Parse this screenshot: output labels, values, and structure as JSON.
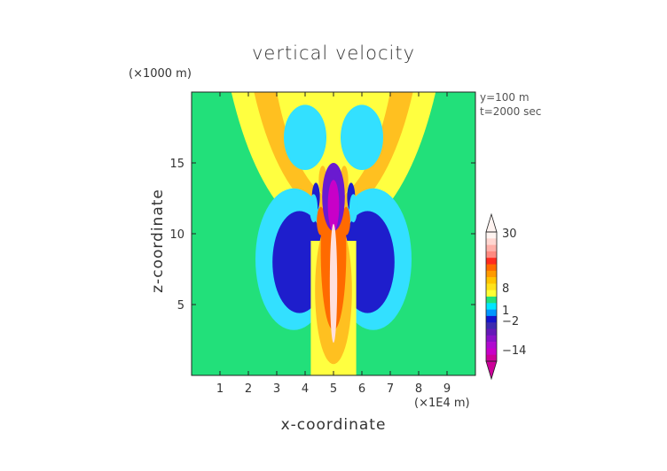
{
  "chart_data": {
    "type": "heatmap",
    "title": "vertical velocity",
    "xlabel": "x-coordinate",
    "ylabel": "z-coordinate",
    "x_scale_note": "(×1E4 m)",
    "z_scale_note": "(×1000 m)",
    "annotations": [
      "y=100 m",
      "t=2000 sec"
    ],
    "xlim": [
      0,
      10
    ],
    "ylim": [
      0,
      20
    ],
    "x_ticks": [
      "1",
      "2",
      "3",
      "4",
      "5",
      "6",
      "7",
      "8",
      "9"
    ],
    "y_ticks": [
      "5",
      "10",
      "15"
    ],
    "colorbar": {
      "labels": [
        "30",
        "8",
        "1",
        "−2",
        "−14"
      ],
      "colors": [
        "#fff3f0",
        "#ffd6d0",
        "#ffb0a8",
        "#ff8a80",
        "#ff2b1f",
        "#ff6a00",
        "#ff9a00",
        "#ffc400",
        "#ffe21a",
        "#ffff33",
        "#22e07a",
        "#00e6ff",
        "#0096ff",
        "#1414cc",
        "#3c2ab0",
        "#6418b8",
        "#8a10c8",
        "#b00ad0",
        "#c800c8",
        "#cc0099"
      ]
    },
    "colors": {
      "background_field": "#22e07a",
      "strong_down": "#1e1ecc",
      "weak_down": "#33e0ff",
      "weak_up": "#ffff40",
      "moderate_up": "#ffc020",
      "strong_up": "#ff6a00",
      "core": "#ffe0dc"
    }
  }
}
